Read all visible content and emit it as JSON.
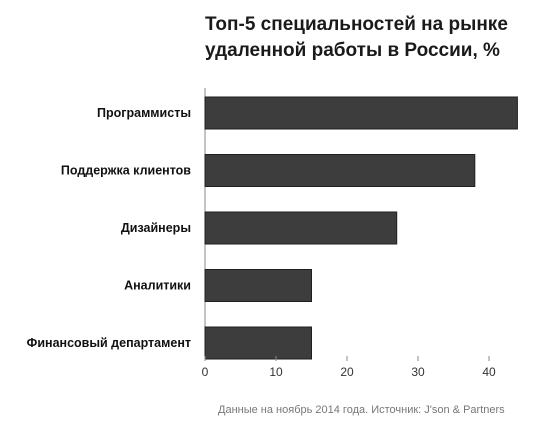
{
  "chart_data": {
    "type": "bar",
    "orientation": "horizontal",
    "title": [
      "Топ-5 специальностей на рынке",
      "удаленной работы в России, %"
    ],
    "categories": [
      "Программисты",
      "Поддержка клиентов",
      "Дизайнеры",
      "Аналитики",
      "Финансовый департамент"
    ],
    "values": [
      44,
      38,
      27,
      15,
      15
    ],
    "xlim": [
      0,
      44
    ],
    "xticks": [
      0,
      10,
      20,
      30,
      40
    ],
    "grid": false,
    "legend": "none",
    "bar_color": "#3d3d3d",
    "note": "Данные на ноябрь 2014 года. Источник: J'son & Partners"
  }
}
